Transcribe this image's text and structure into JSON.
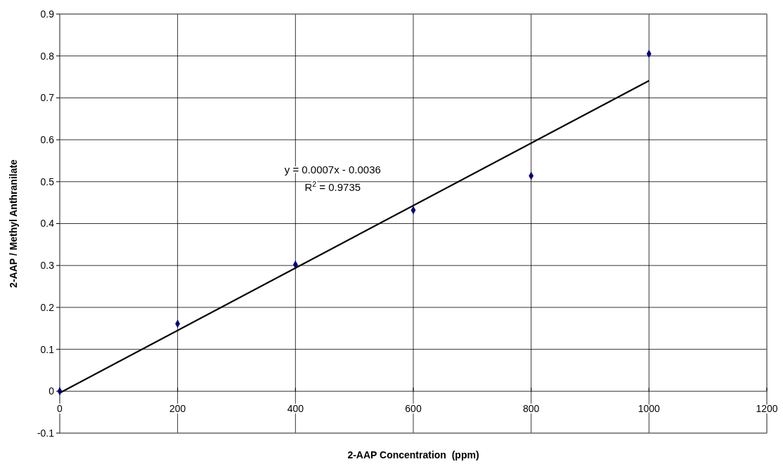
{
  "chart_data": {
    "type": "scatter",
    "xlabel": "2-AAP Concentration  (ppm)",
    "ylabel": "2-AAP / Methyl Anthranilate",
    "x": [
      0,
      200,
      400,
      600,
      800,
      1000
    ],
    "series": [
      {
        "type": "scatter",
        "color": "#000080",
        "marker": "diamond",
        "values": [
          0,
          0.161,
          0.302,
          0.432,
          0.514,
          0.805
        ]
      },
      {
        "type": "line",
        "color": "#000000",
        "marker": "none",
        "line_style": "solid",
        "x": [
          0,
          1000
        ],
        "values": [
          -0.004,
          0.741
        ]
      }
    ],
    "annotations": [
      "y = 0.0007x - 0.0036",
      "R$^{2}$ = 0.9735"
    ],
    "xlim": [
      0,
      1200
    ],
    "xticks": [
      0,
      200,
      400,
      600,
      800,
      1000,
      1200
    ],
    "ylim": [
      -0.1,
      0.9
    ],
    "yticks": [
      -0.1,
      0,
      0.1,
      0.2,
      0.3,
      0.4,
      0.5,
      0.6,
      0.7,
      0.8,
      0.9
    ],
    "grid": true
  }
}
